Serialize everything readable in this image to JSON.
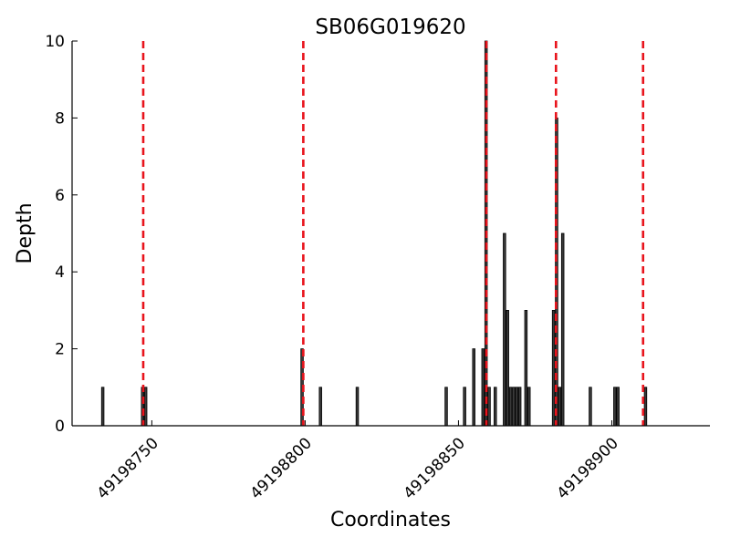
{
  "chart_data": {
    "type": "bar",
    "title": "SB06G019620",
    "xlabel": "Coordinates",
    "ylabel": "Depth",
    "xlim": [
      49198724,
      49198932
    ],
    "ylim": [
      0,
      10
    ],
    "xticks": [
      49198750,
      49198800,
      49198850,
      49198900
    ],
    "yticks": [
      0,
      2,
      4,
      6,
      8,
      10
    ],
    "grid": false,
    "series": [
      {
        "values": [
          {
            "x": 49198734,
            "y": 1
          },
          {
            "x": 49198747,
            "y": 1
          },
          {
            "x": 49198748,
            "y": 1
          },
          {
            "x": 49198799,
            "y": 2
          },
          {
            "x": 49198805,
            "y": 1
          },
          {
            "x": 49198817,
            "y": 1
          },
          {
            "x": 49198846,
            "y": 1
          },
          {
            "x": 49198852,
            "y": 1
          },
          {
            "x": 49198855,
            "y": 2
          },
          {
            "x": 49198858,
            "y": 2
          },
          {
            "x": 49198859,
            "y": 10
          },
          {
            "x": 49198860,
            "y": 1
          },
          {
            "x": 49198862,
            "y": 1
          },
          {
            "x": 49198865,
            "y": 5
          },
          {
            "x": 49198866,
            "y": 3
          },
          {
            "x": 49198867,
            "y": 1
          },
          {
            "x": 49198868,
            "y": 1
          },
          {
            "x": 49198869,
            "y": 1
          },
          {
            "x": 49198870,
            "y": 1
          },
          {
            "x": 49198872,
            "y": 3
          },
          {
            "x": 49198873,
            "y": 1
          },
          {
            "x": 49198881,
            "y": 3
          },
          {
            "x": 49198882,
            "y": 8
          },
          {
            "x": 49198883,
            "y": 1
          },
          {
            "x": 49198884,
            "y": 5
          },
          {
            "x": 49198893,
            "y": 1
          },
          {
            "x": 49198901,
            "y": 1
          },
          {
            "x": 49198902,
            "y": 1
          },
          {
            "x": 49198911,
            "y": 1
          }
        ]
      }
    ],
    "vlines": {
      "color": "#e8141c",
      "style": "dashed",
      "x": [
        49198747.2,
        49198799.4,
        49198859.1,
        49198881.8,
        49198910.2
      ]
    },
    "bar_color": "#3a3a3a"
  }
}
